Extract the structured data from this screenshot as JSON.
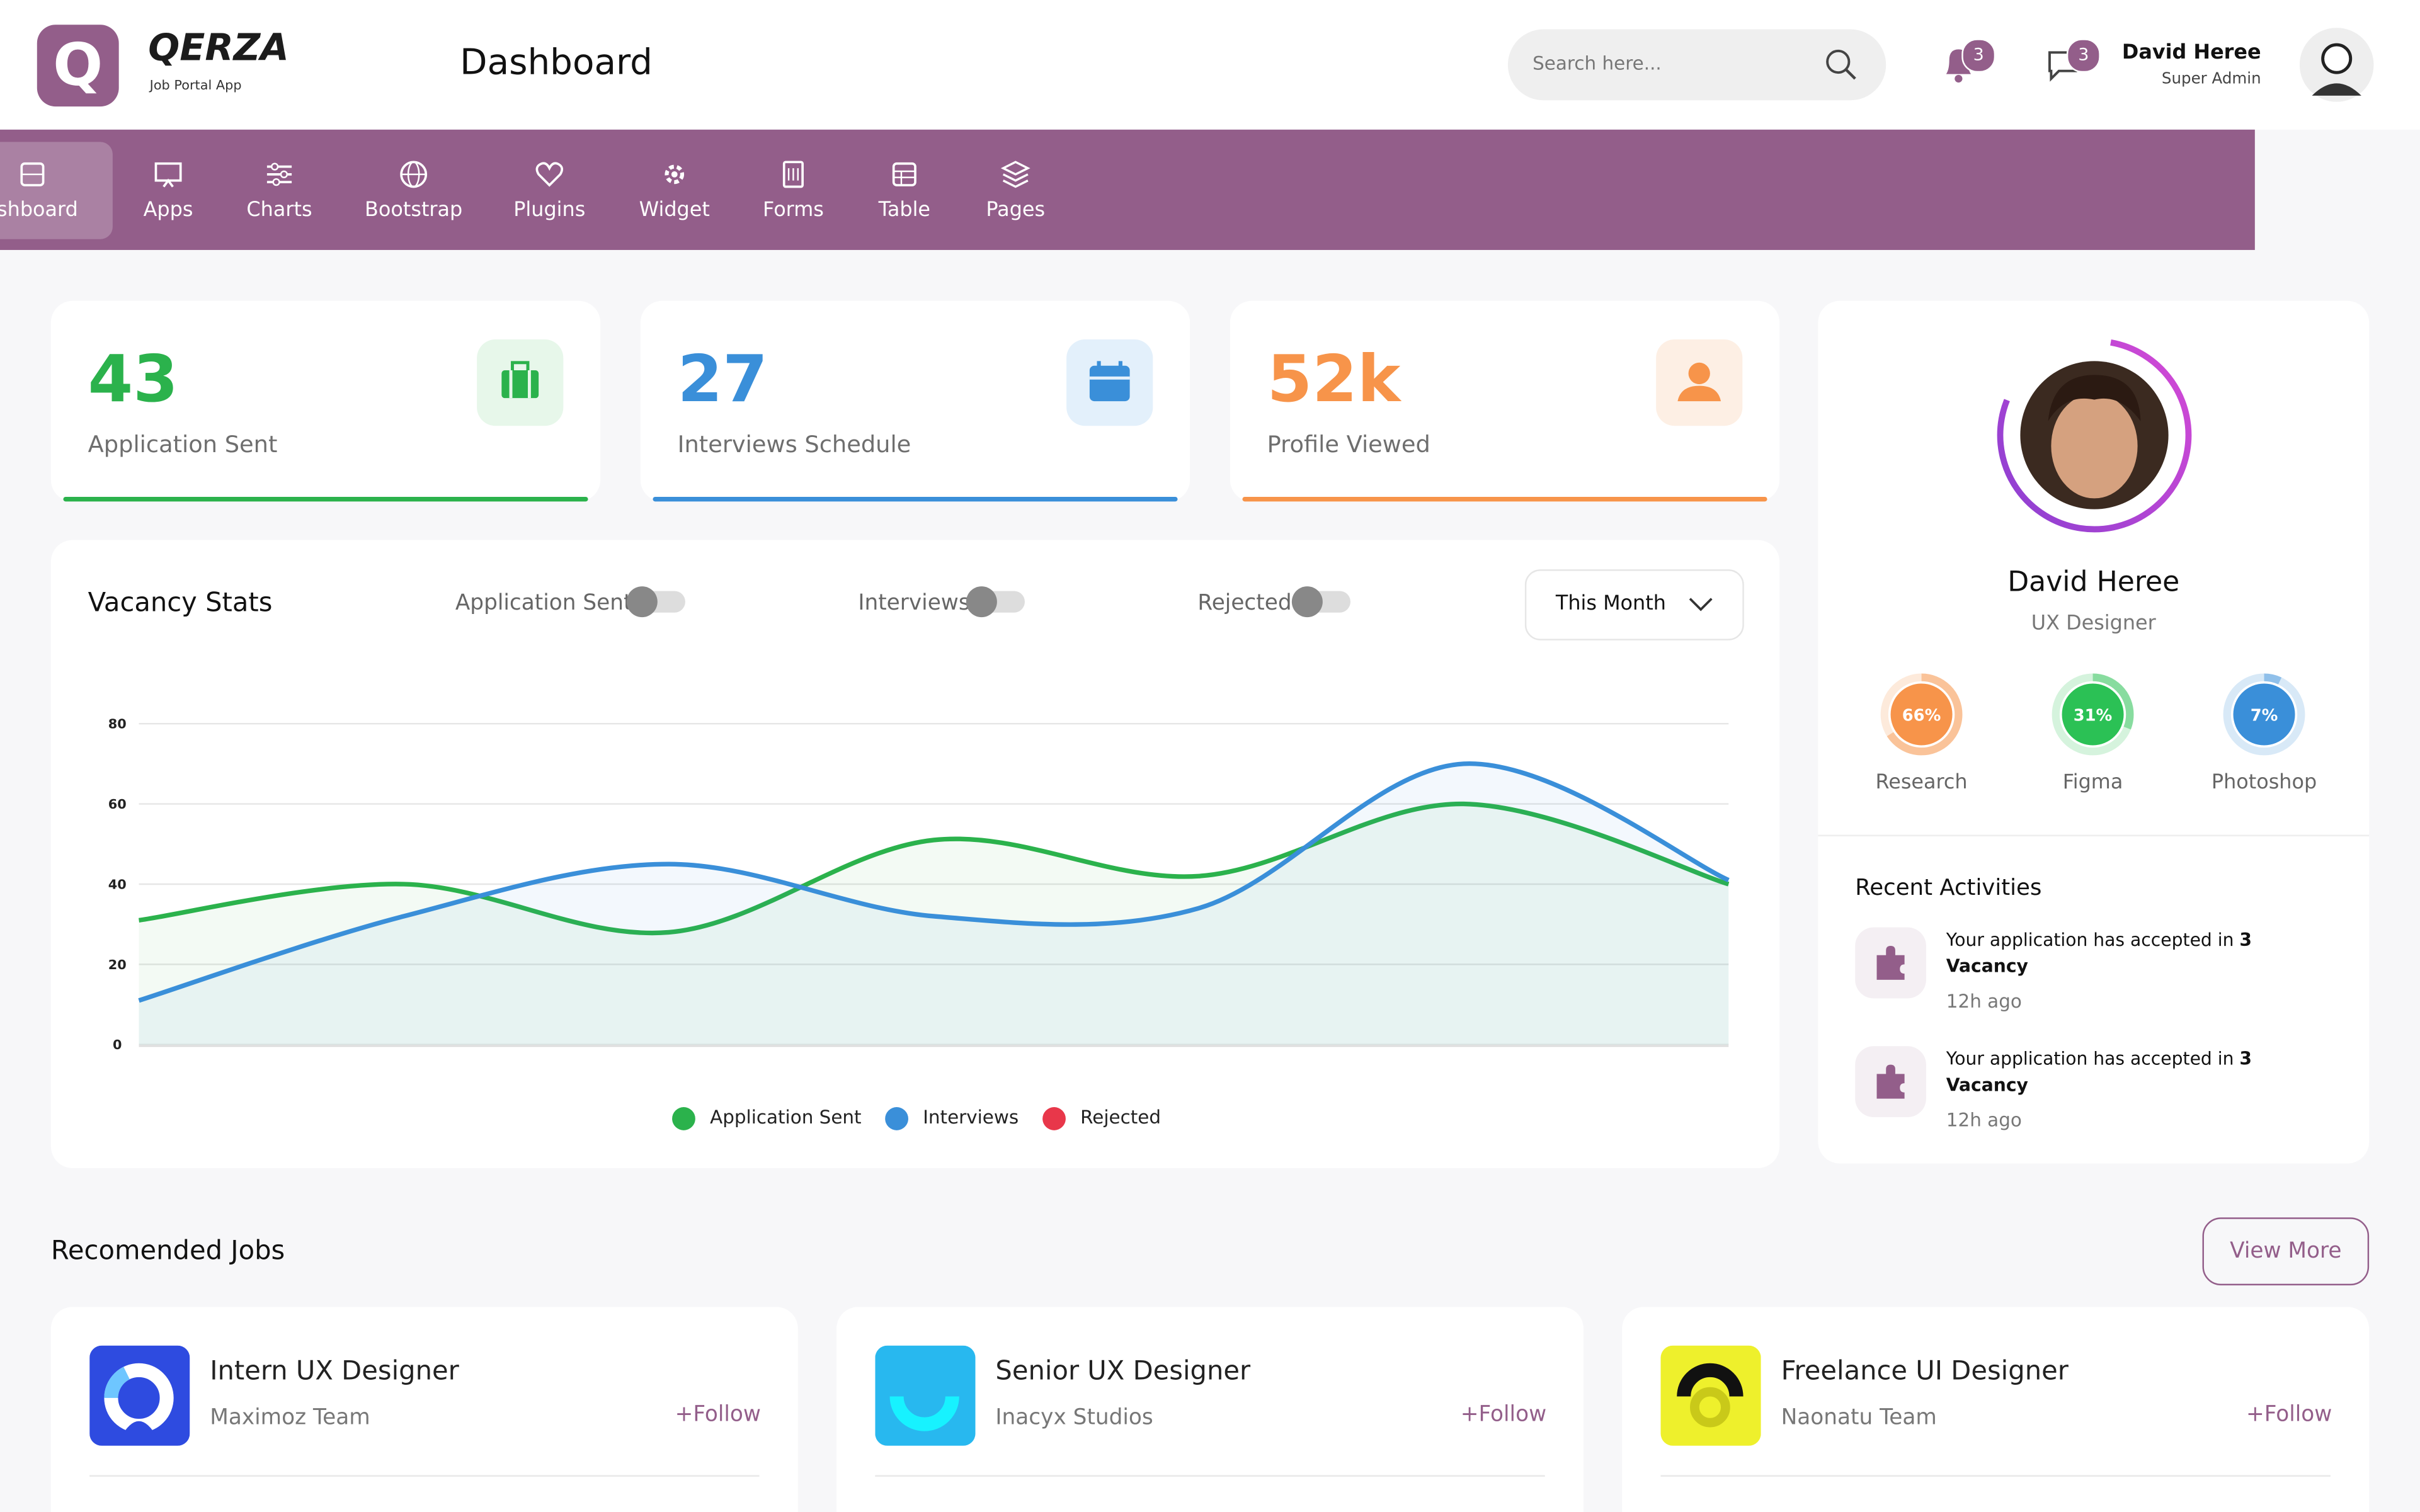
{
  "header": {
    "logo_letter": "Q",
    "brand": "QERZA",
    "tagline": "Job Portal App",
    "page_title": "Dashboard",
    "search_placeholder": "Search here...",
    "notifications": "3",
    "messages": "3",
    "user_name": "David Heree",
    "user_role": "Super Admin"
  },
  "nav": [
    "Dashboard",
    "Apps",
    "Charts",
    "Bootstrap",
    "Plugins",
    "Widget",
    "Forms",
    "Table",
    "Pages"
  ],
  "stats": [
    {
      "value": 43,
      "label": "Application Sent"
    },
    {
      "value": 27,
      "label": "Interviews Schedule"
    },
    {
      "value": "52k",
      "label": "Profile Viewed"
    }
  ],
  "vacancy": {
    "title": "Vacancy Stats",
    "toggles": [
      "Application Sent",
      "Interviews",
      "Rejected"
    ],
    "period": "This Month"
  },
  "chart_data": {
    "type": "area",
    "categories": [
      null,
      null,
      null,
      null,
      null,
      null,
      null
    ],
    "series": [
      {
        "name": "Application Sent",
        "color": "#2bb24c",
        "values": [
          31,
          40,
          28,
          51,
          42,
          60,
          40
        ]
      },
      {
        "name": "Interviews",
        "color": "#3a8fd9",
        "values": [
          11,
          32,
          45,
          32,
          34,
          70,
          41
        ]
      },
      {
        "name": "Rejected",
        "color": "#e8374a",
        "values": [
          null,
          null,
          null,
          null,
          null,
          null,
          null
        ]
      }
    ],
    "ylim": [
      0,
      80
    ],
    "yticks": [
      0,
      20,
      40,
      60,
      80
    ],
    "grid": true,
    "legend": "bottom"
  },
  "profile": {
    "name": "David Heree",
    "role": "UX Designer",
    "skills": {
      "names": [
        "Research",
        "Figma",
        "Photoshop"
      ],
      "values": [
        66,
        31,
        7
      ],
      "value_labels": [
        "66%",
        "31%",
        "7%"
      ],
      "colors": [
        "#f7944a",
        "#2bc155",
        "#3a8fd9"
      ]
    }
  },
  "activities": {
    "title": "Recent Activities",
    "items": [
      {
        "text": "Your application has accepted in",
        "highlight": "3 Vacancy",
        "time": "12h ago"
      },
      {
        "text": "Your application has accepted in",
        "highlight": "3 Vacancy",
        "time": "12h ago"
      }
    ]
  },
  "jobs": {
    "title": "Recomended Jobs",
    "view_more": "View More",
    "items": [
      {
        "title": "Intern UX Designer",
        "company": "Maximoz Team",
        "follow": "+Follow"
      },
      {
        "title": "Senior UX Designer",
        "company": "Inacyx Studios",
        "follow": "+Follow"
      },
      {
        "title": "Freelance UI Designer",
        "company": "Naonatu Team",
        "follow": "+Follow"
      }
    ]
  }
}
